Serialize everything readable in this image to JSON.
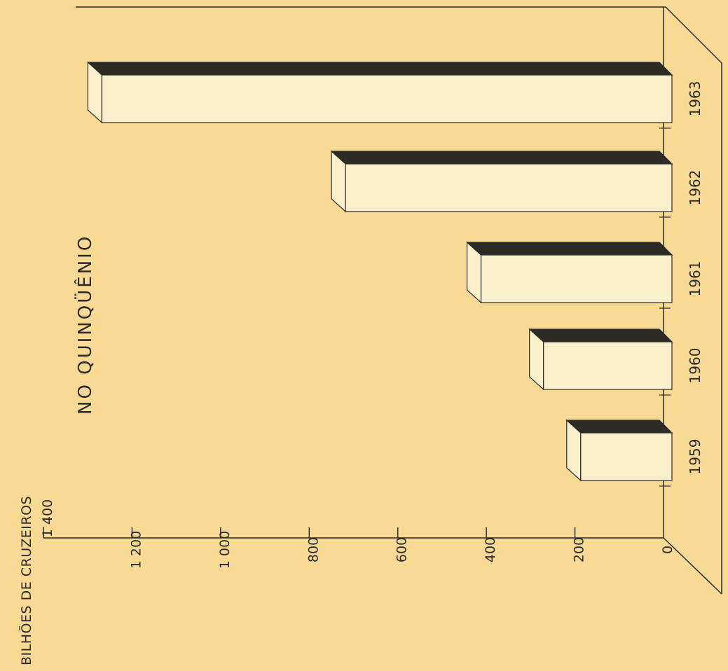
{
  "page": {
    "background": "#f9da95",
    "ink": "#2b2b2b",
    "bar_face": "#fbf0cc",
    "bar_dark": "#2e2a24"
  },
  "chart_data": {
    "type": "bar",
    "orientation": "horizontal",
    "style": "3d",
    "title": "NO QUINQÜÊNIO",
    "unit_label": "BILHÕES DE CRUZEIROS",
    "categories": [
      "1959",
      "1960",
      "1961",
      "1962",
      "1963"
    ],
    "values": [
      187,
      271,
      412,
      718,
      1268
    ],
    "value_axis": {
      "range": [
        0,
        1400
      ],
      "ticks": [
        0,
        200,
        400,
        600,
        800,
        1000,
        1200,
        1400
      ],
      "tick_labels": [
        "0",
        "200",
        "400",
        "600",
        "800",
        "1 000",
        "1 200",
        "1 400"
      ]
    },
    "grid": false,
    "legend": "none"
  }
}
